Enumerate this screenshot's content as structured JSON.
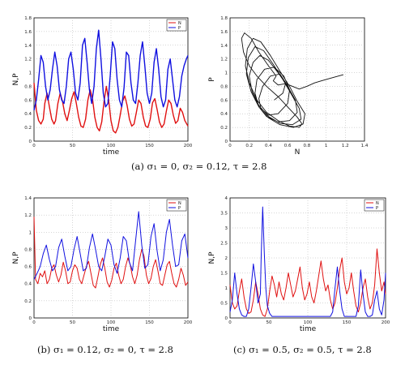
{
  "chart_data": [
    {
      "id": "a-left",
      "type": "line",
      "xlabel": "time",
      "ylabel": "N,P",
      "xlim": [
        0,
        200
      ],
      "ylim": [
        0,
        1.8
      ],
      "xticks": [
        "0",
        "50",
        "100",
        "150",
        "200"
      ],
      "yticks": [
        "0",
        "0.2",
        "0.4",
        "0.6",
        "0.8",
        "1",
        "1.2",
        "1.4",
        "1.6",
        "1.8"
      ],
      "legend": {
        "position": "top-right",
        "entries": [
          "N",
          "P"
        ]
      },
      "grid": true,
      "series": [
        {
          "name": "N",
          "color": "#e01010",
          "x": [
            0,
            3,
            6,
            9,
            12,
            14,
            17,
            20,
            23,
            26,
            28,
            31,
            34,
            37,
            40,
            43,
            46,
            49,
            52,
            55,
            58,
            61,
            64,
            67,
            70,
            73,
            76,
            79,
            82,
            85,
            88,
            91,
            94,
            97,
            100,
            103,
            106,
            109,
            112,
            115,
            118,
            121,
            124,
            127,
            130,
            133,
            136,
            139,
            142,
            145,
            148,
            151,
            154,
            157,
            160,
            163,
            166,
            169,
            172,
            175,
            178,
            181,
            184,
            187,
            190,
            193,
            196,
            200
          ],
          "values": [
            0.85,
            0.45,
            0.3,
            0.25,
            0.32,
            0.55,
            0.7,
            0.5,
            0.32,
            0.25,
            0.3,
            0.55,
            0.7,
            0.58,
            0.4,
            0.3,
            0.45,
            0.62,
            0.72,
            0.55,
            0.35,
            0.22,
            0.2,
            0.32,
            0.6,
            0.75,
            0.62,
            0.35,
            0.2,
            0.15,
            0.28,
            0.58,
            0.8,
            0.6,
            0.3,
            0.15,
            0.12,
            0.2,
            0.38,
            0.58,
            0.66,
            0.52,
            0.32,
            0.22,
            0.25,
            0.42,
            0.6,
            0.55,
            0.35,
            0.22,
            0.2,
            0.32,
            0.56,
            0.62,
            0.46,
            0.28,
            0.2,
            0.25,
            0.44,
            0.6,
            0.55,
            0.38,
            0.26,
            0.3,
            0.48,
            0.42,
            0.3,
            0.22
          ]
        },
        {
          "name": "P",
          "color": "#1010e0",
          "x": [
            0,
            3,
            6,
            9,
            12,
            15,
            18,
            21,
            24,
            27,
            30,
            33,
            36,
            39,
            42,
            45,
            48,
            51,
            54,
            57,
            60,
            63,
            66,
            69,
            72,
            75,
            78,
            81,
            84,
            87,
            90,
            93,
            96,
            99,
            102,
            105,
            108,
            111,
            114,
            117,
            120,
            123,
            126,
            129,
            132,
            135,
            138,
            141,
            144,
            147,
            150,
            153,
            156,
            159,
            162,
            165,
            168,
            171,
            174,
            177,
            180,
            183,
            186,
            189,
            192,
            195,
            198,
            200
          ],
          "values": [
            0.45,
            0.6,
            0.9,
            1.25,
            1.15,
            0.8,
            0.6,
            0.75,
            1.05,
            1.3,
            1.1,
            0.75,
            0.6,
            0.55,
            0.8,
            1.2,
            1.3,
            1.05,
            0.7,
            0.6,
            0.85,
            1.4,
            1.5,
            1.15,
            0.75,
            0.55,
            0.8,
            1.35,
            1.62,
            1.2,
            0.7,
            0.5,
            0.55,
            0.95,
            1.45,
            1.35,
            0.9,
            0.6,
            0.5,
            0.78,
            1.3,
            1.25,
            0.85,
            0.6,
            0.55,
            0.85,
            1.25,
            1.45,
            1.1,
            0.7,
            0.55,
            0.7,
            1.15,
            1.35,
            1.05,
            0.65,
            0.5,
            0.6,
            1.05,
            1.2,
            0.9,
            0.6,
            0.5,
            0.65,
            0.95,
            1.1,
            1.2,
            1.25
          ]
        }
      ]
    },
    {
      "id": "a-right",
      "type": "line",
      "xlabel": "N",
      "ylabel": "P",
      "xlim": [
        0,
        1.4
      ],
      "ylim": [
        0,
        1.8
      ],
      "xticks": [
        "0",
        "0.2",
        "0.4",
        "0.6",
        "0.8",
        "1",
        "1.2",
        "1.4"
      ],
      "yticks": [
        "0",
        "0.2",
        "0.4",
        "0.6",
        "0.8",
        "1",
        "1.2",
        "1.4",
        "1.6",
        "1.8"
      ],
      "grid": true,
      "series": [
        {
          "color": "#111111",
          "x": [
            1.18,
            1.05,
            0.95,
            0.88,
            0.8,
            0.72,
            0.65,
            0.58,
            0.5,
            0.45,
            0.48,
            0.4,
            0.3,
            0.22,
            0.15,
            0.12,
            0.14,
            0.2,
            0.28,
            0.38,
            0.5,
            0.6,
            0.7,
            0.75,
            0.72,
            0.62,
            0.5,
            0.38,
            0.28,
            0.2,
            0.16,
            0.18,
            0.24,
            0.32,
            0.42,
            0.52,
            0.62,
            0.7,
            0.78,
            0.76,
            0.66,
            0.52,
            0.4,
            0.3,
            0.22,
            0.17,
            0.19,
            0.26,
            0.35,
            0.45,
            0.55,
            0.64,
            0.72,
            0.74,
            0.65,
            0.52,
            0.4,
            0.3,
            0.23,
            0.2,
            0.24,
            0.31,
            0.4,
            0.5,
            0.6,
            0.68,
            0.7,
            0.62,
            0.5,
            0.38,
            0.3,
            0.26,
            0.28,
            0.36,
            0.46,
            0.56,
            0.62,
            0.6,
            0.5,
            0.4,
            0.32,
            0.3,
            0.34,
            0.42,
            0.52,
            0.58,
            0.55,
            0.46
          ],
          "values": [
            0.97,
            0.92,
            0.88,
            0.85,
            0.8,
            0.76,
            0.8,
            0.84,
            0.82,
            0.88,
            0.95,
            1.1,
            1.3,
            1.5,
            1.58,
            1.5,
            1.3,
            1.1,
            0.95,
            0.8,
            0.65,
            0.5,
            0.35,
            0.25,
            0.2,
            0.22,
            0.3,
            0.42,
            0.6,
            0.85,
            1.1,
            1.35,
            1.5,
            1.45,
            1.25,
            1.02,
            0.8,
            0.58,
            0.4,
            0.25,
            0.2,
            0.24,
            0.34,
            0.5,
            0.72,
            0.98,
            1.22,
            1.38,
            1.32,
            1.12,
            0.9,
            0.68,
            0.48,
            0.32,
            0.24,
            0.26,
            0.36,
            0.52,
            0.72,
            0.95,
            1.15,
            1.25,
            1.18,
            1.0,
            0.8,
            0.6,
            0.42,
            0.3,
            0.28,
            0.36,
            0.5,
            0.7,
            0.9,
            1.05,
            1.08,
            0.95,
            0.75,
            0.55,
            0.4,
            0.38,
            0.48,
            0.62,
            0.8,
            0.95,
            0.98,
            0.85,
            0.7,
            0.6
          ]
        }
      ]
    },
    {
      "id": "b",
      "type": "line",
      "xlabel": "time",
      "ylabel": "N,P",
      "xlim": [
        0,
        200
      ],
      "ylim": [
        0,
        1.4
      ],
      "xticks": [
        "0",
        "50",
        "100",
        "150",
        "200"
      ],
      "yticks": [
        "0",
        "0.2",
        "0.4",
        "0.6",
        "0.8",
        "1",
        "1.2",
        "1.4"
      ],
      "legend": {
        "position": "top-right",
        "entries": [
          "N",
          "P"
        ]
      },
      "grid": true,
      "series": [
        {
          "name": "N",
          "color": "#e01010",
          "x": [
            0,
            2,
            5,
            8,
            11,
            14,
            17,
            20,
            23,
            26,
            29,
            32,
            35,
            38,
            41,
            44,
            47,
            50,
            53,
            56,
            59,
            62,
            65,
            68,
            71,
            74,
            77,
            80,
            83,
            86,
            89,
            92,
            95,
            98,
            101,
            104,
            107,
            110,
            113,
            116,
            119,
            122,
            125,
            128,
            131,
            134,
            137,
            140,
            143,
            146,
            149,
            152,
            155,
            158,
            161,
            164,
            167,
            170,
            173,
            176,
            179,
            182,
            185,
            188,
            191,
            194,
            197,
            200
          ],
          "values": [
            1.18,
            0.45,
            0.4,
            0.52,
            0.48,
            0.55,
            0.4,
            0.45,
            0.58,
            0.62,
            0.5,
            0.42,
            0.5,
            0.65,
            0.55,
            0.4,
            0.42,
            0.55,
            0.62,
            0.58,
            0.45,
            0.4,
            0.5,
            0.6,
            0.66,
            0.52,
            0.38,
            0.35,
            0.48,
            0.62,
            0.7,
            0.58,
            0.42,
            0.36,
            0.44,
            0.58,
            0.64,
            0.5,
            0.4,
            0.45,
            0.6,
            0.7,
            0.62,
            0.48,
            0.4,
            0.5,
            0.68,
            0.8,
            0.72,
            0.5,
            0.4,
            0.46,
            0.6,
            0.68,
            0.55,
            0.4,
            0.38,
            0.5,
            0.62,
            0.66,
            0.52,
            0.4,
            0.36,
            0.45,
            0.58,
            0.5,
            0.38,
            0.42
          ]
        },
        {
          "name": "P",
          "color": "#1010e0",
          "x": [
            0,
            4,
            8,
            12,
            16,
            20,
            24,
            28,
            32,
            36,
            40,
            44,
            48,
            52,
            56,
            60,
            64,
            68,
            72,
            76,
            80,
            84,
            88,
            92,
            96,
            100,
            104,
            108,
            112,
            116,
            120,
            124,
            128,
            132,
            136,
            140,
            144,
            148,
            152,
            156,
            160,
            164,
            168,
            172,
            176,
            180,
            184,
            188,
            192,
            196,
            200
          ],
          "values": [
            0.45,
            0.52,
            0.6,
            0.75,
            0.85,
            0.68,
            0.55,
            0.6,
            0.82,
            0.92,
            0.72,
            0.55,
            0.6,
            0.8,
            0.95,
            0.75,
            0.55,
            0.58,
            0.82,
            0.98,
            0.8,
            0.6,
            0.55,
            0.72,
            0.92,
            0.85,
            0.62,
            0.52,
            0.7,
            0.95,
            0.9,
            0.65,
            0.55,
            0.9,
            1.24,
            0.85,
            0.58,
            0.62,
            0.95,
            1.1,
            0.78,
            0.55,
            0.68,
            1.0,
            1.15,
            0.85,
            0.6,
            0.62,
            0.9,
            0.98,
            0.7
          ]
        }
      ]
    },
    {
      "id": "c",
      "type": "line",
      "xlabel": "time",
      "ylabel": "N,P",
      "xlim": [
        0,
        200
      ],
      "ylim": [
        0,
        4
      ],
      "xticks": [
        "0",
        "50",
        "100",
        "150",
        "200"
      ],
      "yticks": [
        "0",
        "0.5",
        "1",
        "1.5",
        "2",
        "2.5",
        "3",
        "3.5",
        "4"
      ],
      "legend": {
        "position": "top-right",
        "entries": [
          "N",
          "P"
        ]
      },
      "grid": true,
      "series": [
        {
          "name": "N",
          "color": "#e01010",
          "x": [
            0,
            3,
            6,
            9,
            12,
            15,
            18,
            21,
            24,
            27,
            30,
            33,
            36,
            39,
            42,
            45,
            48,
            51,
            54,
            57,
            60,
            63,
            66,
            69,
            72,
            75,
            78,
            81,
            84,
            87,
            90,
            93,
            96,
            99,
            102,
            105,
            108,
            111,
            114,
            117,
            120,
            123,
            126,
            129,
            132,
            135,
            138,
            141,
            144,
            147,
            150,
            153,
            156,
            159,
            162,
            165,
            168,
            171,
            174,
            177,
            180,
            183,
            186,
            189,
            192,
            195,
            198,
            200
          ],
          "values": [
            1.1,
            0.5,
            0.3,
            0.4,
            0.9,
            1.3,
            0.7,
            0.3,
            0.15,
            0.2,
            0.6,
            1.2,
            0.8,
            0.3,
            0.1,
            0.05,
            0.3,
            0.9,
            1.4,
            1.1,
            0.7,
            1.2,
            0.8,
            0.6,
            1.0,
            1.5,
            1.1,
            0.7,
            0.9,
            1.3,
            1.7,
            1.0,
            0.6,
            0.8,
            1.2,
            0.7,
            0.5,
            0.9,
            1.4,
            1.9,
            1.3,
            0.9,
            1.1,
            0.6,
            0.3,
            0.5,
            1.0,
            1.6,
            2.0,
            1.2,
            0.8,
            1.0,
            1.5,
            0.9,
            0.4,
            0.2,
            0.5,
            1.0,
            1.3,
            0.7,
            0.3,
            0.5,
            1.1,
            2.3,
            1.5,
            0.9,
            1.2,
            0.8
          ]
        },
        {
          "name": "P",
          "color": "#1010e0",
          "x": [
            0,
            3,
            6,
            9,
            12,
            15,
            18,
            21,
            24,
            27,
            30,
            33,
            36,
            39,
            40,
            42,
            44,
            46,
            48,
            51,
            54,
            57,
            60,
            63,
            66,
            69,
            72,
            75,
            78,
            81,
            84,
            87,
            90,
            93,
            96,
            99,
            102,
            105,
            108,
            111,
            114,
            117,
            120,
            123,
            126,
            129,
            132,
            135,
            138,
            141,
            144,
            147,
            150,
            153,
            156,
            159,
            162,
            165,
            168,
            171,
            174,
            177,
            180,
            183,
            186,
            189,
            192,
            195,
            198,
            200
          ],
          "values": [
            0.2,
            0.6,
            1.5,
            0.8,
            0.3,
            0.1,
            0.05,
            0.05,
            0.3,
            1.0,
            1.8,
            1.2,
            0.5,
            0.8,
            2.0,
            3.7,
            2.2,
            1.0,
            0.4,
            0.15,
            0.05,
            0.05,
            0.05,
            0.05,
            0.05,
            0.05,
            0.05,
            0.05,
            0.05,
            0.05,
            0.05,
            0.05,
            0.05,
            0.05,
            0.05,
            0.05,
            0.05,
            0.05,
            0.05,
            0.05,
            0.05,
            0.05,
            0.05,
            0.05,
            0.05,
            0.05,
            0.2,
            1.0,
            1.7,
            0.9,
            0.3,
            0.05,
            0.05,
            0.05,
            0.05,
            0.05,
            0.05,
            0.4,
            1.6,
            0.8,
            0.2,
            0.05,
            0.05,
            0.1,
            0.6,
            0.9,
            0.3,
            0.1,
            0.6,
            1.5
          ]
        }
      ]
    }
  ],
  "captions": {
    "a": "(a) σ₁ = 0, σ₂ = 0.12, τ = 2.8",
    "b": "(b) σ₁ = 0.12, σ₂ = 0, τ = 2.8",
    "c": "(c) σ₁ = 0.5, σ₂ = 0.5, τ = 2.8"
  }
}
